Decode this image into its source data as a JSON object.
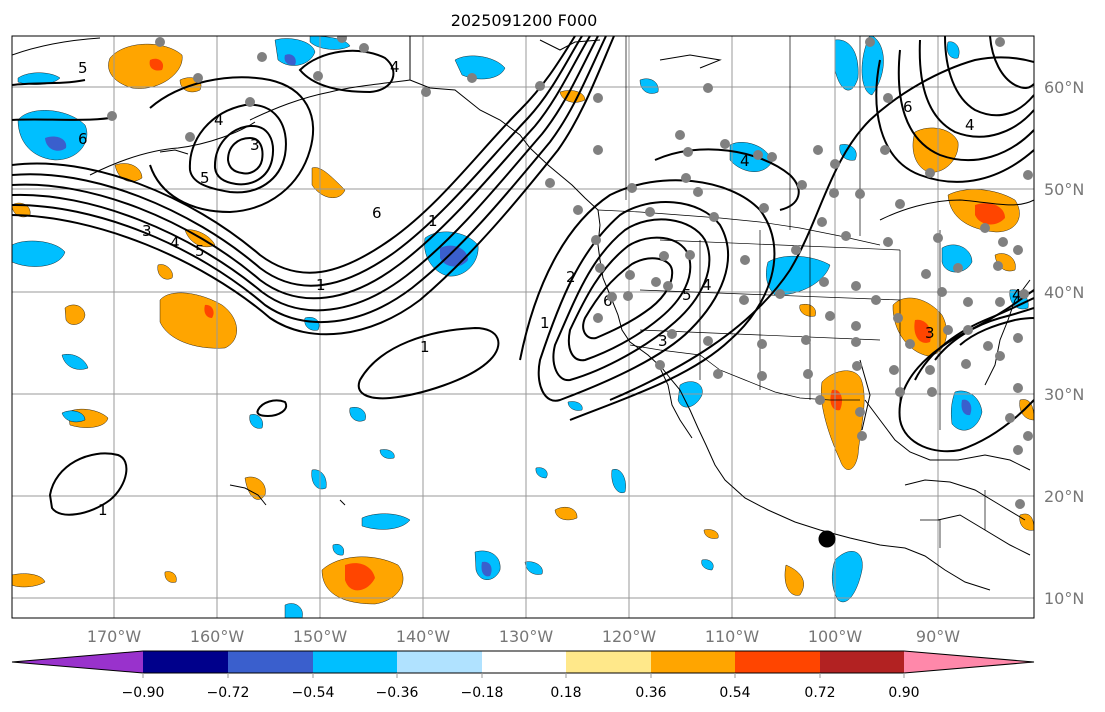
{
  "title": "2025091200 F000",
  "lat_labels": [
    "60°N",
    "50°N",
    "40°N",
    "30°N",
    "20°N",
    "10°N"
  ],
  "lon_labels": [
    "170°W",
    "160°W",
    "150°W",
    "140°W",
    "130°W",
    "120°W",
    "110°W",
    "100°W",
    "90°W"
  ],
  "colorbar": {
    "ticks": [
      "−0.90",
      "−0.72",
      "−0.54",
      "−0.36",
      "−0.18",
      "0.18",
      "0.36",
      "0.54",
      "0.72",
      "0.90"
    ],
    "colors": [
      "#9932cc",
      "#00008b",
      "#3a5fcd",
      "#00bfff",
      "#b0e2ff",
      "#ffffff",
      "#ffe88a",
      "#ffa500",
      "#ff4500",
      "#b22222",
      "#ff88aa"
    ]
  },
  "contour_labels": [
    "5",
    "4",
    "6",
    "4",
    "3",
    "5",
    "6",
    "1",
    "3",
    "4",
    "5",
    "1",
    "1",
    "1",
    "2",
    "6",
    "5",
    "4",
    "3",
    "4",
    "6",
    "4",
    "3",
    "4",
    "1"
  ],
  "colors": {
    "grid": "#999999",
    "station_dot": "#808080",
    "marker": "#000000",
    "positive_light": "#ffa500",
    "positive_strong": "#ff4500",
    "negative_light": "#00bfff",
    "negative_strong": "#3a5fcd"
  }
}
